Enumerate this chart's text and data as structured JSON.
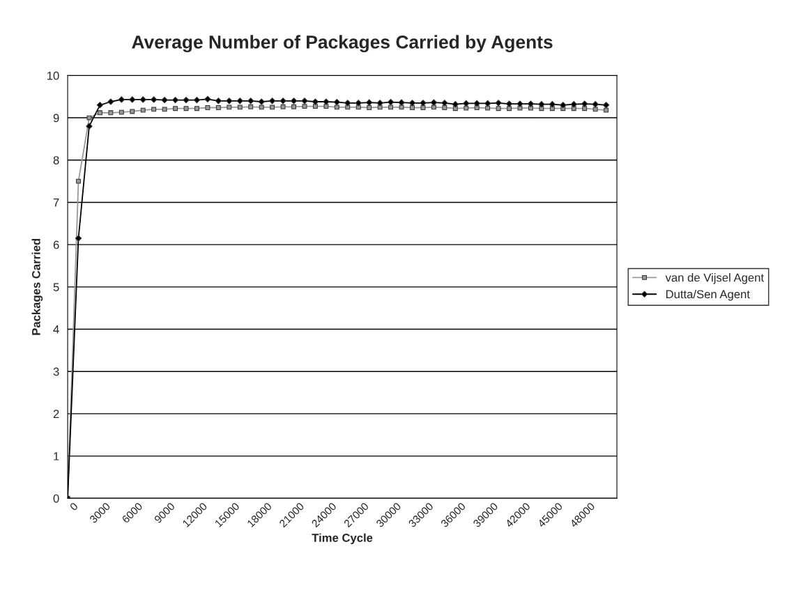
{
  "chart_data": {
    "type": "line",
    "title": "Average Number of Packages Carried by Agents",
    "xlabel": "Time Cycle",
    "ylabel": "Packages Carried",
    "categories": [
      "0",
      null,
      null,
      "3000",
      null,
      null,
      "6000",
      null,
      null,
      "9000",
      null,
      null,
      "12000",
      null,
      null,
      "15000",
      null,
      null,
      "18000",
      null,
      null,
      "21000",
      null,
      null,
      "24000",
      null,
      null,
      "27000",
      null,
      null,
      "30000",
      null,
      null,
      "33000",
      null,
      null,
      "36000",
      null,
      null,
      "39000",
      null,
      null,
      "42000",
      null,
      null,
      "45000",
      null,
      null,
      "48000",
      null,
      null
    ],
    "series": [
      {
        "name": "van de Vijsel Agent",
        "color": "#999999",
        "marker": "square",
        "values": [
          0,
          7.5,
          9.0,
          9.12,
          9.12,
          9.13,
          9.15,
          9.18,
          9.2,
          9.2,
          9.22,
          9.22,
          9.22,
          9.24,
          9.24,
          9.25,
          9.25,
          9.26,
          9.25,
          9.25,
          9.26,
          9.26,
          9.27,
          9.27,
          9.27,
          9.25,
          9.25,
          9.25,
          9.24,
          9.25,
          9.25,
          9.25,
          9.24,
          9.24,
          9.25,
          9.24,
          9.22,
          9.23,
          9.24,
          9.23,
          9.22,
          9.22,
          9.23,
          9.23,
          9.22,
          9.22,
          9.22,
          9.22,
          9.22,
          9.2,
          9.18
        ]
      },
      {
        "name": "Dutta/Sen Agent",
        "color": "#000000",
        "marker": "diamond",
        "values": [
          0,
          6.15,
          8.8,
          9.3,
          9.38,
          9.43,
          9.43,
          9.43,
          9.43,
          9.42,
          9.42,
          9.42,
          9.42,
          9.44,
          9.4,
          9.4,
          9.4,
          9.4,
          9.38,
          9.4,
          9.4,
          9.4,
          9.4,
          9.38,
          9.38,
          9.37,
          9.35,
          9.35,
          9.36,
          9.35,
          9.37,
          9.36,
          9.35,
          9.35,
          9.36,
          9.35,
          9.32,
          9.34,
          9.34,
          9.34,
          9.35,
          9.33,
          9.33,
          9.33,
          9.32,
          9.32,
          9.3,
          9.32,
          9.33,
          9.32,
          9.3
        ]
      }
    ],
    "ylim": [
      0,
      10
    ],
    "yticks": [
      0,
      1,
      2,
      3,
      4,
      5,
      6,
      7,
      8,
      9,
      10
    ],
    "grid": "y",
    "legend": "right",
    "line_style": "solid"
  }
}
